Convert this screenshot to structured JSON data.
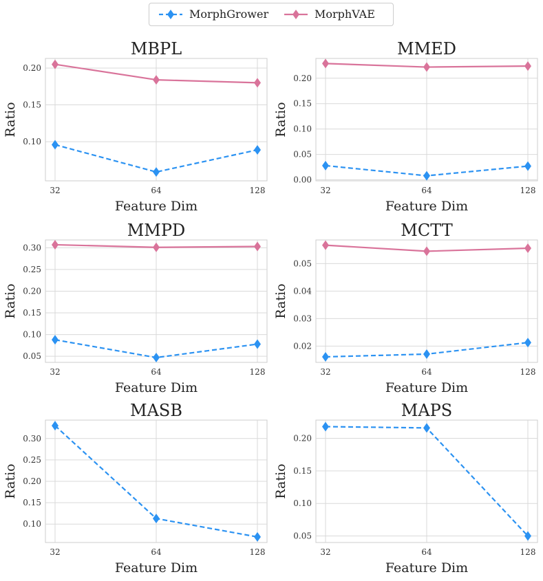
{
  "legend": {
    "entries": [
      {
        "name": "MorphGrower",
        "color": "#2b92f2",
        "style": "dashed"
      },
      {
        "name": "MorphVAE",
        "color": "#d9739a",
        "style": "solid"
      }
    ]
  },
  "chart_data": [
    {
      "type": "line",
      "title": "MBPL",
      "xlabel": "Feature Dim",
      "ylabel": "Ratio",
      "categories": [
        "32",
        "64",
        "128"
      ],
      "ylim": [
        0.047,
        0.213
      ],
      "yticks": [
        0.1,
        0.15,
        0.2
      ],
      "yticklabels": [
        "0.10",
        "0.15",
        "0.20"
      ],
      "grid": true,
      "series": [
        {
          "name": "MorphGrower",
          "values": [
            0.096,
            0.059,
            0.089
          ]
        },
        {
          "name": "MorphVAE",
          "values": [
            0.205,
            0.184,
            0.18
          ]
        }
      ]
    },
    {
      "type": "line",
      "title": "MMED",
      "xlabel": "Feature Dim",
      "ylabel": "Ratio",
      "categories": [
        "32",
        "64",
        "128"
      ],
      "ylim": [
        -0.002,
        0.239
      ],
      "yticks": [
        0.0,
        0.05,
        0.1,
        0.15,
        0.2
      ],
      "yticklabels": [
        "0.00",
        "0.05",
        "0.10",
        "0.15",
        "0.20"
      ],
      "grid": true,
      "series": [
        {
          "name": "MorphGrower",
          "values": [
            0.028,
            0.008,
            0.027
          ]
        },
        {
          "name": "MorphVAE",
          "values": [
            0.229,
            0.222,
            0.224
          ]
        }
      ]
    },
    {
      "type": "line",
      "title": "MMPD",
      "xlabel": "Feature Dim",
      "ylabel": "Ratio",
      "categories": [
        "32",
        "64",
        "128"
      ],
      "ylim": [
        0.036,
        0.318
      ],
      "yticks": [
        0.05,
        0.1,
        0.15,
        0.2,
        0.25,
        0.3
      ],
      "yticklabels": [
        "0.05",
        "0.10",
        "0.15",
        "0.20",
        "0.25",
        "0.30"
      ],
      "grid": true,
      "series": [
        {
          "name": "MorphGrower",
          "values": [
            0.088,
            0.047,
            0.078
          ]
        },
        {
          "name": "MorphVAE",
          "values": [
            0.307,
            0.301,
            0.303
          ]
        }
      ]
    },
    {
      "type": "line",
      "title": "MCTT",
      "xlabel": "Feature Dim",
      "ylabel": "Ratio",
      "categories": [
        "32",
        "64",
        "128"
      ],
      "ylim": [
        0.0141,
        0.0586
      ],
      "yticks": [
        0.02,
        0.03,
        0.04,
        0.05
      ],
      "yticklabels": [
        "0.02",
        "0.03",
        "0.04",
        "0.05"
      ],
      "grid": true,
      "series": [
        {
          "name": "MorphGrower",
          "values": [
            0.0161,
            0.0171,
            0.0213
          ]
        },
        {
          "name": "MorphVAE",
          "values": [
            0.0567,
            0.0545,
            0.0556
          ]
        }
      ]
    },
    {
      "type": "line",
      "title": "MASB",
      "xlabel": "Feature Dim",
      "ylabel": "Ratio",
      "categories": [
        "32",
        "64",
        "128"
      ],
      "ylim": [
        0.057,
        0.343
      ],
      "yticks": [
        0.1,
        0.15,
        0.2,
        0.25,
        0.3
      ],
      "yticklabels": [
        "0.10",
        "0.15",
        "0.20",
        "0.25",
        "0.30"
      ],
      "grid": true,
      "series": [
        {
          "name": "MorphGrower",
          "values": [
            0.33,
            0.113,
            0.07
          ]
        }
      ]
    },
    {
      "type": "line",
      "title": "MAPS",
      "xlabel": "Feature Dim",
      "ylabel": "Ratio",
      "categories": [
        "32",
        "64",
        "128"
      ],
      "ylim": [
        0.04,
        0.228
      ],
      "yticks": [
        0.05,
        0.1,
        0.15,
        0.2
      ],
      "yticklabels": [
        "0.05",
        "0.10",
        "0.15",
        "0.20"
      ],
      "grid": true,
      "series": [
        {
          "name": "MorphGrower",
          "values": [
            0.218,
            0.216,
            0.05
          ]
        }
      ]
    }
  ]
}
